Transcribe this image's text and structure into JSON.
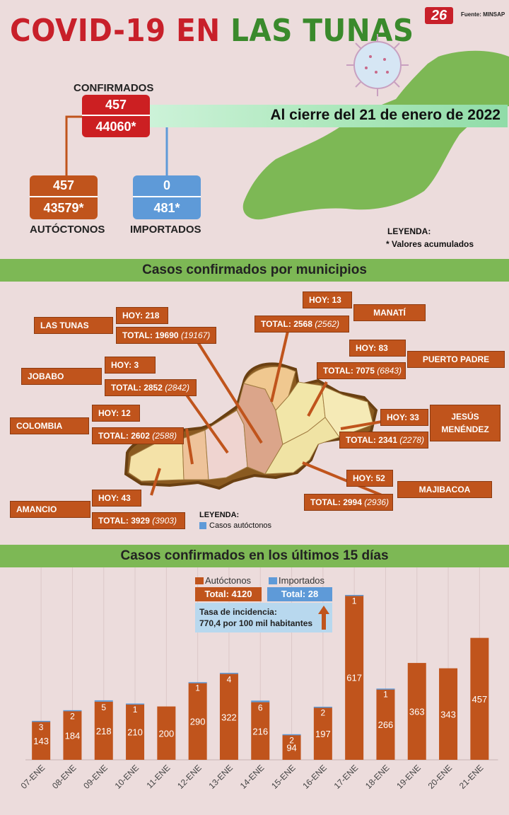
{
  "header": {
    "title_part1": "COVID-19 EN",
    "title_part2": "LAS TUNAS",
    "logo": "26",
    "source": "Fuente: MINSAP"
  },
  "summary": {
    "confirmados_label": "CONFIRMADOS",
    "confirmados_today": "457",
    "confirmados_total": "44060*",
    "date_banner": "Al cierre del 21 de enero de 2022",
    "autoctonos_today": "457",
    "autoctonos_total": "43579*",
    "autoctonos_label": "AUTÓCTONOS",
    "importados_today": "0",
    "importados_total": "481*",
    "importados_label": "IMPORTADOS",
    "legend_title": "LEYENDA:",
    "legend_text": "* Valores acumulados"
  },
  "municipios": {
    "section_title": "Casos confirmados por municipios",
    "legend_title": "LEYENDA:",
    "legend_text": "Casos autóctonos",
    "items": [
      {
        "name": "LAS TUNAS",
        "hoy": "HOY: 218",
        "total": "TOTAL: 19690",
        "prev": "(19167)"
      },
      {
        "name": "JOBABO",
        "hoy": "HOY: 3",
        "total": "TOTAL: 2852",
        "prev": "(2842)"
      },
      {
        "name": "COLOMBIA",
        "hoy": "HOY: 12",
        "total": "TOTAL: 2602",
        "prev": "(2588)"
      },
      {
        "name": "AMANCIO",
        "hoy": "HOY: 43",
        "total": "TOTAL: 3929",
        "prev": "(3903)"
      },
      {
        "name": "MANATÍ",
        "hoy": "HOY: 13",
        "total": "TOTAL: 2568",
        "prev": "(2562)"
      },
      {
        "name": "PUERTO PADRE",
        "hoy": "HOY: 83",
        "total": "TOTAL: 7075",
        "prev": "(6843)"
      },
      {
        "name": "JESÚS MENÉNDEZ",
        "hoy": "HOY: 33",
        "total": "TOTAL: 2341",
        "prev": "(2278)"
      },
      {
        "name": "MAJIBACOA",
        "hoy": "HOY: 52",
        "total": "TOTAL: 2994",
        "prev": "(2936)"
      }
    ]
  },
  "chart_section": {
    "title": "Casos confirmados en los últimos 15 días",
    "legend_autoctonos": "Autóctonos",
    "legend_importados": "Importados",
    "total_autoctonos": "Total: 4120",
    "total_importados": "Total: 28",
    "incidence_line1": "Tasa de incidencia:",
    "incidence_line2": "770,4 por 100 mil habitantes"
  },
  "chart_data": {
    "type": "bar",
    "stacked": true,
    "categories": [
      "07-ENE",
      "08-ENE",
      "09-ENE",
      "10-ENE",
      "11-ENE",
      "12-ENE",
      "13-ENE",
      "14-ENE",
      "15-ENE",
      "16-ENE",
      "17-ENE",
      "18-ENE",
      "19-ENE",
      "20-ENE",
      "21-ENE"
    ],
    "series": [
      {
        "name": "Autóctonos",
        "color": "#c0541c",
        "values": [
          143,
          184,
          218,
          210,
          200,
          290,
          322,
          216,
          94,
          197,
          617,
          266,
          363,
          343,
          457
        ]
      },
      {
        "name": "Importados",
        "color": "#5e9ad8",
        "values": [
          3,
          2,
          5,
          1,
          0,
          1,
          4,
          6,
          2,
          2,
          1,
          1,
          0,
          0,
          0
        ]
      }
    ],
    "ylim": [
      0,
      700
    ],
    "grid": true
  }
}
